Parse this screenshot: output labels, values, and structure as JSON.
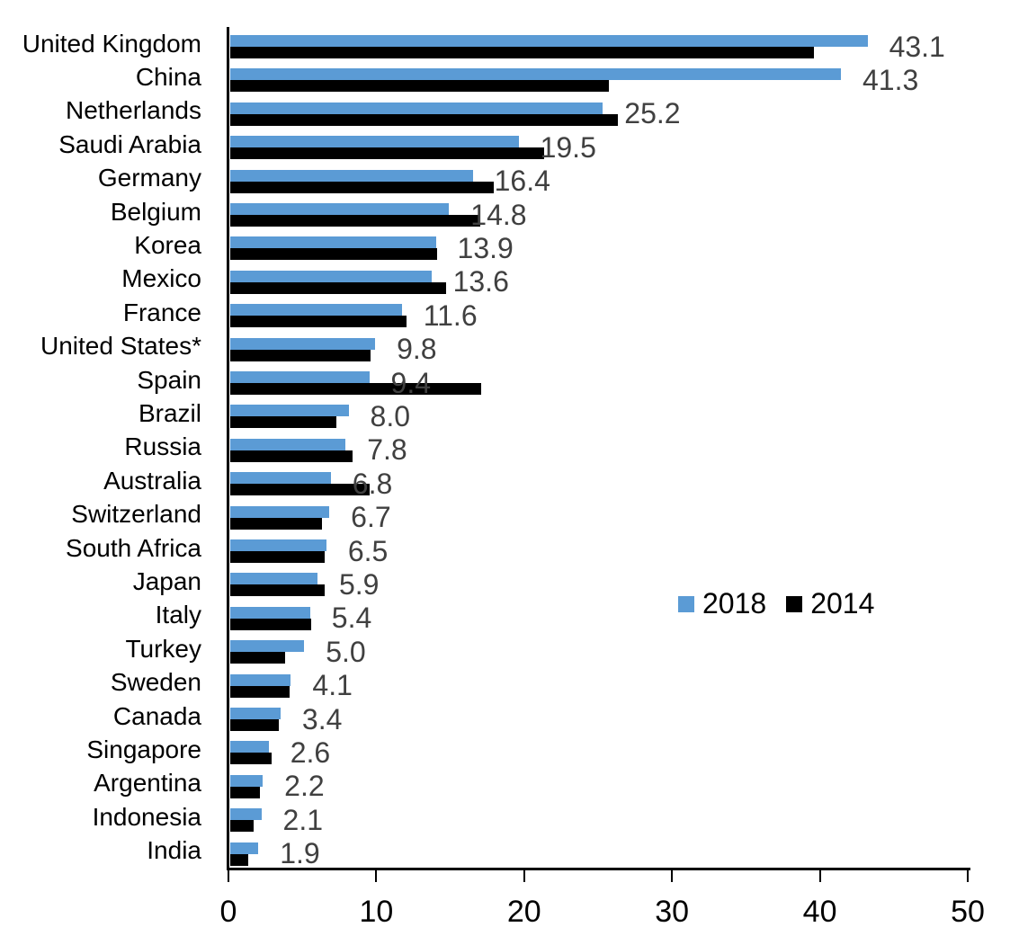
{
  "chart_data": {
    "type": "bar",
    "orientation": "horizontal",
    "title": "",
    "xlabel": "",
    "ylabel": "",
    "xlim": [
      0,
      50
    ],
    "x_ticks": [
      "0",
      "10",
      "20",
      "30",
      "40",
      "50"
    ],
    "grid": false,
    "legend_position": "middle-right",
    "categories": [
      "United Kingdom",
      "China",
      "Netherlands",
      "Saudi Arabia",
      "Germany",
      "Belgium",
      "Korea",
      "Mexico",
      "France",
      "United States*",
      "Spain",
      "Brazil",
      "Russia",
      "Australia",
      "Switzerland",
      "South Africa",
      "Japan",
      "Italy",
      "Turkey",
      "Sweden",
      "Canada",
      "Singapore",
      "Argentina",
      "Indonesia",
      "India"
    ],
    "series": [
      {
        "name": "2018",
        "color": "#5B9BD5",
        "values": [
          43.1,
          41.3,
          25.2,
          19.5,
          16.4,
          14.8,
          13.9,
          13.6,
          11.6,
          9.8,
          9.4,
          8.0,
          7.8,
          6.8,
          6.7,
          6.5,
          5.9,
          5.4,
          5.0,
          4.1,
          3.4,
          2.6,
          2.2,
          2.1,
          1.9
        ]
      },
      {
        "name": "2014",
        "color": "#000000",
        "values": [
          39.5,
          25.6,
          26.2,
          21.2,
          17.8,
          16.9,
          14.0,
          14.6,
          11.9,
          9.5,
          17.0,
          7.2,
          8.3,
          9.4,
          6.2,
          6.4,
          6.4,
          5.5,
          3.7,
          4.0,
          3.3,
          2.8,
          2.0,
          1.6,
          1.2
        ]
      }
    ],
    "data_labels": [
      "43.1",
      "41.3",
      "25.2",
      "19.5",
      "16.4",
      "14.8",
      "13.9",
      "13.6",
      "11.6",
      "9.8",
      "9.4",
      "8.0",
      "7.8",
      "6.8",
      "6.7",
      "6.5",
      "5.9",
      "5.4",
      "5.0",
      "4.1",
      "3.4",
      "2.6",
      "2.2",
      "2.1",
      "1.9"
    ],
    "data_label_color": "#404040",
    "axis_color": "#000000",
    "legend": {
      "entries": [
        {
          "label": "2018",
          "color": "#5B9BD5"
        },
        {
          "label": "2014",
          "color": "#000000"
        }
      ]
    }
  }
}
